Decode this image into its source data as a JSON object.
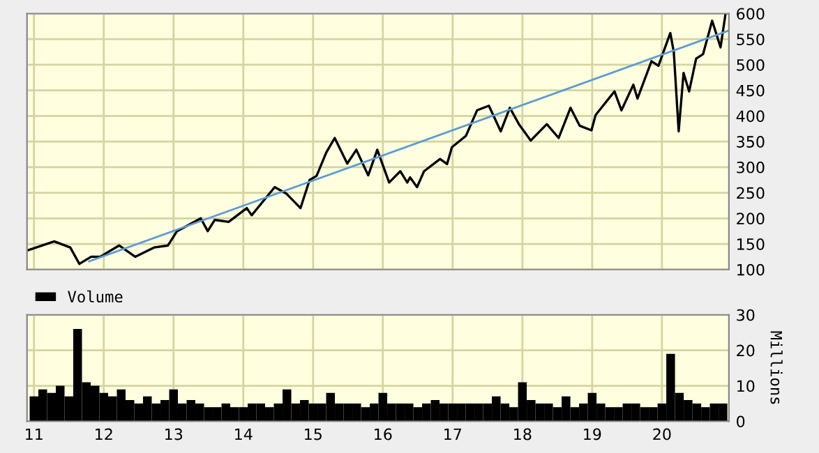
{
  "chart_data": [
    {
      "type": "line",
      "xlim": [
        2010.9,
        2020.96
      ],
      "ylim": [
        100,
        600
      ],
      "yticks": [
        100,
        150,
        200,
        250,
        300,
        350,
        400,
        450,
        500,
        550,
        600
      ],
      "xticks": [
        {
          "value": 2011,
          "label": null
        },
        {
          "value": 2012,
          "label": null
        },
        {
          "value": 2013,
          "label": null
        },
        {
          "value": 2014,
          "label": null
        },
        {
          "value": 2015,
          "label": null
        },
        {
          "value": 2016,
          "label": null
        },
        {
          "value": 2017,
          "label": null
        },
        {
          "value": 2018,
          "label": null
        },
        {
          "value": 2019,
          "label": null
        },
        {
          "value": 2020,
          "label": null
        }
      ],
      "grid": true,
      "tick_labels": "y",
      "series": [
        {
          "color": "#000000",
          "x": [
            2010.92,
            2011.29,
            2011.52,
            2011.65,
            2011.82,
            2011.95,
            2012.22,
            2012.45,
            2012.72,
            2012.92,
            2013.05,
            2013.39,
            2013.49,
            2013.59,
            2013.79,
            2014.05,
            2014.12,
            2014.45,
            2014.62,
            2014.82,
            2014.95,
            2015.05,
            2015.19,
            2015.31,
            2015.49,
            2015.62,
            2015.79,
            2015.92,
            2016.09,
            2016.25,
            2016.35,
            2016.39,
            2016.49,
            2016.59,
            2016.82,
            2016.92,
            2016.99,
            2017.19,
            2017.35,
            2017.52,
            2017.69,
            2017.82,
            2017.95,
            2018.12,
            2018.35,
            2018.52,
            2018.69,
            2018.82,
            2018.99,
            2019.05,
            2019.32,
            2019.42,
            2019.59,
            2019.65,
            2019.85,
            2019.95,
            2020.12,
            2020.17,
            2020.24,
            2020.31,
            2020.39,
            2020.49,
            2020.59,
            2020.72,
            2020.84,
            2020.91
          ],
          "values": [
            138,
            155,
            143,
            111,
            125,
            125,
            147,
            125,
            143,
            147,
            175,
            200,
            175,
            197,
            193,
            220,
            206,
            261,
            248,
            220,
            275,
            283,
            329,
            357,
            307,
            334,
            284,
            334,
            270,
            292,
            270,
            280,
            261,
            292,
            316,
            306,
            339,
            361,
            411,
            420,
            370,
            416,
            384,
            352,
            384,
            357,
            416,
            381,
            372,
            402,
            448,
            411,
            461,
            434,
            507,
            498,
            562,
            525,
            370,
            484,
            448,
            512,
            521,
            586,
            534,
            598
          ]
        },
        {
          "type": "line",
          "color": "#5b9bd5",
          "x": [
            2011.79,
            2020.96
          ],
          "values": [
            116,
            567
          ]
        }
      ]
    },
    {
      "type": "bar",
      "xlim": [
        2010.9,
        2020.96
      ],
      "ylim": [
        0,
        30
      ],
      "yticks": [
        0,
        10,
        20,
        30
      ],
      "ylabel": "Millions",
      "legend": "top left",
      "grid": true,
      "xticks": [
        {
          "value": 2011,
          "label": "11"
        },
        {
          "value": 2012,
          "label": "12"
        },
        {
          "value": 2013,
          "label": "13"
        },
        {
          "value": 2014,
          "label": "14"
        },
        {
          "value": 2015,
          "label": "15"
        },
        {
          "value": 2016,
          "label": "16"
        },
        {
          "value": 2017,
          "label": "17"
        },
        {
          "value": 2018,
          "label": "18"
        },
        {
          "value": 2019,
          "label": "19"
        },
        {
          "value": 2020,
          "label": "20"
        }
      ],
      "series": [
        {
          "name": "Volume",
          "color": "#000000",
          "x": [
            2011.0,
            2011.125,
            2011.25,
            2011.375,
            2011.5,
            2011.625,
            2011.75,
            2011.875,
            2012.0,
            2012.125,
            2012.25,
            2012.375,
            2012.5,
            2012.625,
            2012.75,
            2012.875,
            2013.0,
            2013.125,
            2013.25,
            2013.375,
            2013.5,
            2013.625,
            2013.75,
            2013.875,
            2014.0,
            2014.125,
            2014.25,
            2014.375,
            2014.5,
            2014.625,
            2014.75,
            2014.875,
            2015.0,
            2015.125,
            2015.25,
            2015.375,
            2015.5,
            2015.625,
            2015.75,
            2015.875,
            2016.0,
            2016.125,
            2016.25,
            2016.375,
            2016.5,
            2016.625,
            2016.75,
            2016.875,
            2017.0,
            2017.125,
            2017.25,
            2017.375,
            2017.5,
            2017.625,
            2017.75,
            2017.875,
            2018.0,
            2018.125,
            2018.25,
            2018.375,
            2018.5,
            2018.625,
            2018.75,
            2018.875,
            2019.0,
            2019.125,
            2019.25,
            2019.375,
            2019.5,
            2019.625,
            2019.75,
            2019.875,
            2020.0,
            2020.125,
            2020.25,
            2020.375,
            2020.5,
            2020.625,
            2020.75,
            2020.875
          ],
          "values": [
            7,
            9,
            8,
            10,
            7,
            26,
            11,
            10,
            8,
            7,
            9,
            6,
            5,
            7,
            5,
            6,
            9,
            5,
            6,
            5,
            4,
            4,
            5,
            4,
            4,
            5,
            5,
            4,
            5,
            9,
            5,
            6,
            5,
            5,
            8,
            5,
            5,
            5,
            4,
            5,
            8,
            5,
            5,
            5,
            4,
            5,
            6,
            5,
            5,
            5,
            5,
            5,
            5,
            7,
            5,
            4,
            11,
            6,
            5,
            5,
            4,
            7,
            4,
            5,
            8,
            5,
            4,
            4,
            5,
            5,
            4,
            4,
            5,
            19,
            8,
            6,
            5,
            4,
            5,
            5
          ]
        }
      ]
    }
  ]
}
